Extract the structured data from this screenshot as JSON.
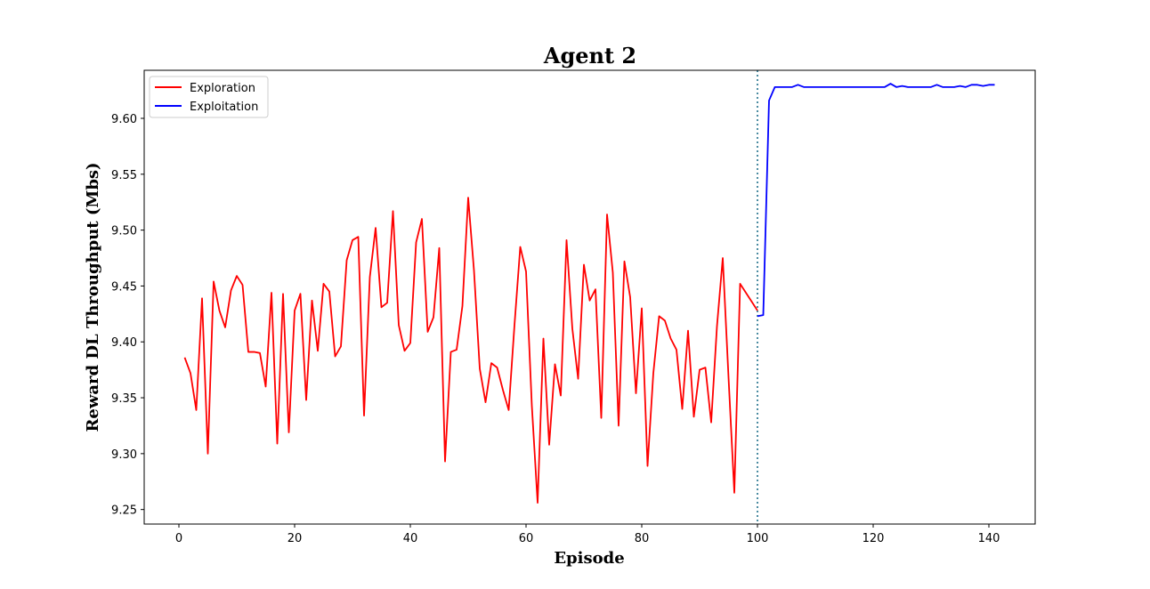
{
  "chart_data": {
    "type": "line",
    "title": "Agent 2",
    "xlabel": "Episode",
    "ylabel": "Reward DL Throughput (Mbs)",
    "xlim": [
      -6,
      148
    ],
    "ylim": [
      9.237,
      9.643
    ],
    "xticks": [
      0,
      20,
      40,
      60,
      80,
      100,
      120,
      140
    ],
    "yticks": [
      9.25,
      9.3,
      9.35,
      9.4,
      9.45,
      9.5,
      9.55,
      9.6
    ],
    "xtick_labels": [
      "0",
      "20",
      "40",
      "60",
      "80",
      "100",
      "120",
      "140"
    ],
    "ytick_labels": [
      "9.25",
      "9.30",
      "9.35",
      "9.40",
      "9.45",
      "9.50",
      "9.55",
      "9.60"
    ],
    "grid": false,
    "legend_position": "top-left",
    "vline": {
      "x": 100,
      "style": "dotted",
      "color": "#1f6f8b"
    },
    "series": [
      {
        "name": "Exploration",
        "color": "#ff0000",
        "x": [
          1,
          2,
          3,
          4,
          5,
          6,
          7,
          8,
          9,
          10,
          11,
          12,
          13,
          14,
          15,
          16,
          17,
          18,
          19,
          20,
          21,
          22,
          23,
          24,
          25,
          26,
          27,
          28,
          29,
          30,
          31,
          32,
          33,
          34,
          35,
          36,
          37,
          38,
          39,
          40,
          41,
          42,
          43,
          44,
          45,
          46,
          47,
          48,
          49,
          50,
          51,
          52,
          53,
          54,
          55,
          56,
          57,
          58,
          59,
          60,
          61,
          62,
          63,
          64,
          65,
          66,
          67,
          68,
          69,
          70,
          71,
          72,
          73,
          74,
          75,
          76,
          77,
          78,
          79,
          80,
          81,
          82,
          83,
          84,
          85,
          86,
          87,
          88,
          89,
          90,
          91,
          92,
          93,
          94,
          95,
          96,
          97,
          98,
          99,
          100
        ],
        "y": [
          9.386,
          9.372,
          9.339,
          9.439,
          9.3,
          9.454,
          9.428,
          9.413,
          9.446,
          9.459,
          9.451,
          9.391,
          9.391,
          9.39,
          9.36,
          9.444,
          9.309,
          9.443,
          9.319,
          9.428,
          9.443,
          9.348,
          9.437,
          9.392,
          9.452,
          9.445,
          9.387,
          9.396,
          9.473,
          9.491,
          9.494,
          9.334,
          9.458,
          9.502,
          9.431,
          9.435,
          9.517,
          9.415,
          9.392,
          9.399,
          9.489,
          9.51,
          9.409,
          9.422,
          9.484,
          9.293,
          9.391,
          9.393,
          9.432,
          9.529,
          9.464,
          9.376,
          9.346,
          9.381,
          9.377,
          9.357,
          9.339,
          9.415,
          9.485,
          9.463,
          9.343,
          9.256,
          9.403,
          9.308,
          9.38,
          9.352,
          9.491,
          9.412,
          9.367,
          9.469,
          9.437,
          9.447,
          9.332,
          9.514,
          9.462,
          9.325,
          9.472,
          9.44,
          9.354,
          9.43,
          9.289,
          9.372,
          9.423,
          9.419,
          9.403,
          9.393,
          9.34,
          9.41,
          9.333,
          9.375,
          9.377,
          9.328,
          9.414,
          9.475,
          9.368,
          9.265,
          9.452,
          9.444,
          9.436,
          9.428
        ]
      },
      {
        "name": "Exploitation",
        "color": "#0000ff",
        "x": [
          100,
          101,
          102,
          103,
          104,
          105,
          106,
          107,
          108,
          109,
          110,
          111,
          112,
          113,
          114,
          115,
          116,
          117,
          118,
          119,
          120,
          121,
          122,
          123,
          124,
          125,
          126,
          127,
          128,
          129,
          130,
          131,
          132,
          133,
          134,
          135,
          136,
          137,
          138,
          139,
          140,
          141
        ],
        "y": [
          9.423,
          9.424,
          9.616,
          9.628,
          9.628,
          9.628,
          9.628,
          9.63,
          9.628,
          9.628,
          9.628,
          9.628,
          9.628,
          9.628,
          9.628,
          9.628,
          9.628,
          9.628,
          9.628,
          9.628,
          9.628,
          9.628,
          9.628,
          9.631,
          9.628,
          9.629,
          9.628,
          9.628,
          9.628,
          9.628,
          9.628,
          9.63,
          9.628,
          9.628,
          9.628,
          9.629,
          9.628,
          9.63,
          9.63,
          9.629,
          9.63,
          9.63
        ]
      }
    ]
  }
}
